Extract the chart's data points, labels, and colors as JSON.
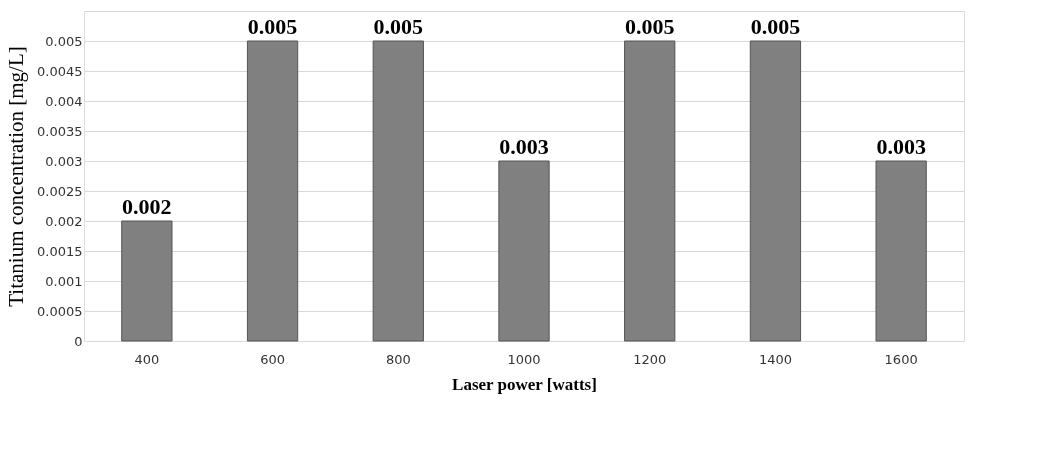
{
  "chart_data": {
    "type": "bar",
    "xlabel": "Laser power [watts]",
    "ylabel": "Titanium concentration [mg/L]",
    "categories": [
      "400",
      "600",
      "800",
      "1000",
      "1200",
      "1400",
      "1600"
    ],
    "values": [
      0.002,
      0.005,
      0.005,
      0.003,
      0.005,
      0.005,
      0.003
    ],
    "color": "#808080",
    "ylim": [
      0,
      0.0055
    ],
    "yticks": [
      0,
      0.0005,
      0.001,
      0.0015,
      0.002,
      0.0025,
      0.003,
      0.0035,
      0.004,
      0.0045,
      0.005,
      {
        "value": 0.0055,
        "label": null
      }
    ],
    "grid": "y",
    "data_labels": true
  }
}
